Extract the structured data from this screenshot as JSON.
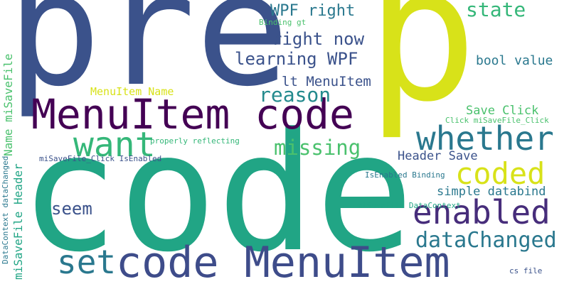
{
  "cloud": {
    "words": [
      {
        "text": "pre",
        "color": "#3b528b"
      },
      {
        "text": "p",
        "color": "#d8e219"
      },
      {
        "text": "code",
        "color": "#21a585"
      },
      {
        "text": "MenuItem code",
        "color": "#440154"
      },
      {
        "text": "code MenuItem",
        "color": "#3e4c8a"
      },
      {
        "text": "whether",
        "color": "#2a788e"
      },
      {
        "text": "enabled",
        "color": "#472d7b"
      },
      {
        "text": "want",
        "color": "#35b779"
      },
      {
        "text": "coded",
        "color": "#d8e219"
      },
      {
        "text": "missing",
        "color": "#4ac16d"
      },
      {
        "text": "reason",
        "color": "#238a8d"
      },
      {
        "text": "learning WPF",
        "color": "#3b528b"
      },
      {
        "text": "right now",
        "color": "#3b528b"
      },
      {
        "text": "WPF right",
        "color": "#2a788e"
      },
      {
        "text": "state",
        "color": "#35b779"
      },
      {
        "text": "lt MenuItem",
        "color": "#3b528b"
      },
      {
        "text": "bool value",
        "color": "#2a788e"
      },
      {
        "text": "MenuItem Name",
        "color": "#d8e219"
      },
      {
        "text": "Save Click",
        "color": "#4ac16d"
      },
      {
        "text": "Click miSaveFile_Click",
        "color": "#4ac16d"
      },
      {
        "text": "Header Save",
        "color": "#3b528b"
      },
      {
        "text": "simple databind",
        "color": "#2a788e"
      },
      {
        "text": "seem",
        "color": "#3b528b"
      },
      {
        "text": "set",
        "color": "#2a788e"
      },
      {
        "text": "dataChanged",
        "color": "#2a788e"
      },
      {
        "text": "miSaveFile_Click IsEnabled",
        "color": "#3b528b"
      },
      {
        "text": "properly reflecting",
        "color": "#35b779"
      },
      {
        "text": "IsEnabled Binding",
        "color": "#2a788e"
      },
      {
        "text": "miSaveFile DataContext",
        "color": "#21a585"
      },
      {
        "text": "Binding gt",
        "color": "#4ac16d"
      },
      {
        "text": "cs file",
        "color": "#3b528b"
      },
      {
        "text": "miSaveFile Header",
        "color": "#21a585"
      },
      {
        "text": "Name miSaveFile",
        "color": "#4ac16d"
      },
      {
        "text": "DataContext dataChanged",
        "color": "#2a788e"
      }
    ]
  }
}
